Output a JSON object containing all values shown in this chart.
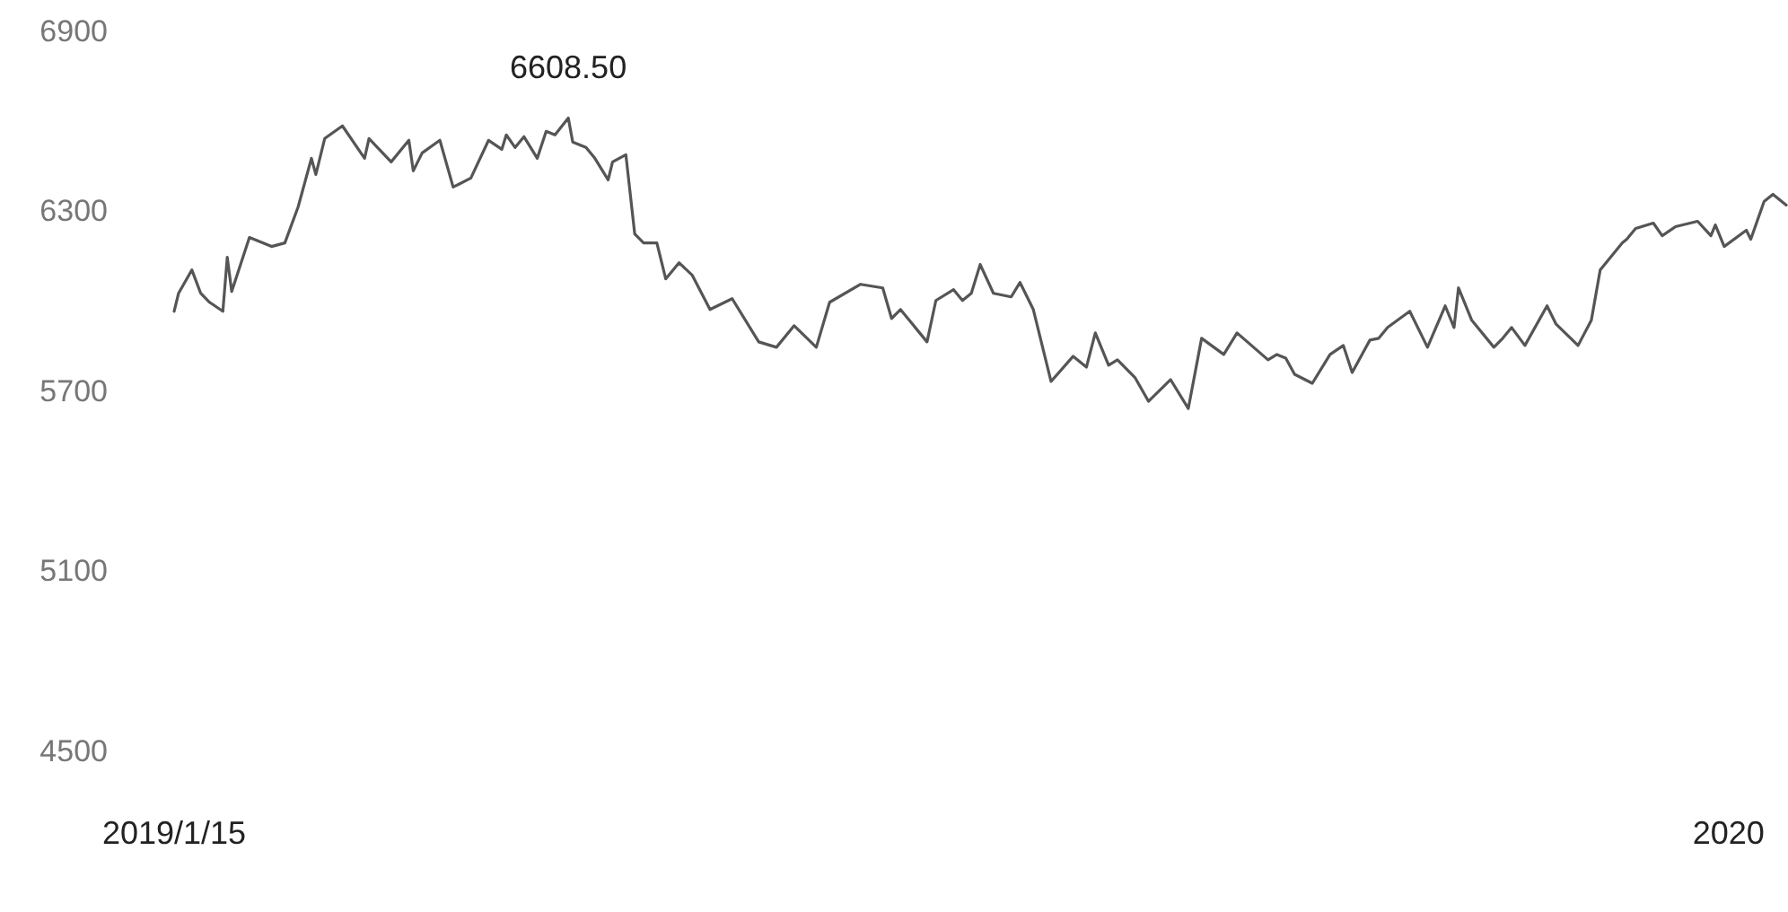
{
  "chart_data": {
    "type": "line",
    "xlim": [
      "2019-01-15",
      "2020-01-14"
    ],
    "xticks": [
      {
        "value": "2019-01-15",
        "label": "2019/1/15"
      },
      {
        "value": "2020-01-01",
        "label": "2020"
      }
    ],
    "ylim": [
      4500,
      6900
    ],
    "yticks": [
      4500,
      5100,
      5700,
      6300,
      6900
    ],
    "grid": false,
    "marker": "none",
    "line_style": "solid",
    "annotations": [
      {
        "text": "6608.50",
        "x": "2019-04-14",
        "y": 6608.5
      }
    ],
    "series": [
      {
        "color": "#555555",
        "x": [
          "2019-01-15",
          "2019-01-16",
          "2019-01-19",
          "2019-01-21",
          "2019-01-23",
          "2019-01-26",
          "2019-01-27",
          "2019-01-28",
          "2019-02-01",
          "2019-02-06",
          "2019-02-09",
          "2019-02-12",
          "2019-02-15",
          "2019-02-16",
          "2019-02-18",
          "2019-02-22",
          "2019-02-27",
          "2019-02-28",
          "2019-03-05",
          "2019-03-09",
          "2019-03-10",
          "2019-03-12",
          "2019-03-16",
          "2019-03-19",
          "2019-03-23",
          "2019-03-27",
          "2019-03-30",
          "2019-03-31",
          "2019-04-02",
          "2019-04-04",
          "2019-04-07",
          "2019-04-09",
          "2019-04-11",
          "2019-04-14",
          "2019-04-15",
          "2019-04-18",
          "2019-04-20",
          "2019-04-23",
          "2019-04-24",
          "2019-04-27",
          "2019-04-29",
          "2019-05-01",
          "2019-05-04",
          "2019-05-06",
          "2019-05-09",
          "2019-05-12",
          "2019-05-16",
          "2019-05-21",
          "2019-05-27",
          "2019-05-31",
          "2019-06-04",
          "2019-06-09",
          "2019-06-12",
          "2019-06-19",
          "2019-06-24",
          "2019-06-26",
          "2019-06-28",
          "2019-07-04",
          "2019-07-06",
          "2019-07-10",
          "2019-07-12",
          "2019-07-14",
          "2019-07-16",
          "2019-07-19",
          "2019-07-23",
          "2019-07-25",
          "2019-07-28",
          "2019-08-01",
          "2019-08-06",
          "2019-08-09",
          "2019-08-11",
          "2019-08-14",
          "2019-08-16",
          "2019-08-20",
          "2019-08-23",
          "2019-08-28",
          "2019-09-01",
          "2019-09-04",
          "2019-09-09",
          "2019-09-12",
          "2019-09-19",
          "2019-09-21",
          "2019-09-23",
          "2019-09-25",
          "2019-09-29",
          "2019-10-03",
          "2019-10-06",
          "2019-10-08",
          "2019-10-12",
          "2019-10-14",
          "2019-10-16",
          "2019-10-21",
          "2019-10-25",
          "2019-10-29",
          "2019-10-31",
          "2019-11-01",
          "2019-11-04",
          "2019-11-09",
          "2019-11-11",
          "2019-11-13",
          "2019-11-16",
          "2019-11-21",
          "2019-11-23",
          "2019-11-28",
          "2019-12-01",
          "2019-12-03",
          "2019-12-08",
          "2019-12-09",
          "2019-12-11",
          "2019-12-15",
          "2019-12-17",
          "2019-12-20",
          "2019-12-25",
          "2019-12-28",
          "2019-12-29",
          "2019-12-31",
          "2020-01-05",
          "2020-01-06",
          "2020-01-09",
          "2020-01-11",
          "2020-01-14"
        ],
        "values": [
          5964,
          6024,
          6102,
          6024,
          5994,
          5964,
          6144,
          6030,
          6210,
          6180,
          6192,
          6312,
          6474,
          6420,
          6540,
          6582,
          6474,
          6540,
          6462,
          6534,
          6432,
          6492,
          6534,
          6378,
          6408,
          6534,
          6504,
          6552,
          6510,
          6546,
          6474,
          6564,
          6552,
          6608.5,
          6528,
          6510,
          6474,
          6402,
          6462,
          6486,
          6222,
          6192,
          6192,
          6072,
          6126,
          6084,
          5970,
          6006,
          5862,
          5844,
          5916,
          5844,
          5994,
          6054,
          6042,
          5940,
          5970,
          5862,
          6000,
          6036,
          6000,
          6024,
          6120,
          6024,
          6012,
          6060,
          5970,
          5730,
          5814,
          5778,
          5892,
          5784,
          5802,
          5742,
          5664,
          5736,
          5640,
          5874,
          5820,
          5892,
          5802,
          5820,
          5808,
          5754,
          5724,
          5820,
          5850,
          5760,
          5868,
          5874,
          5910,
          5964,
          5844,
          5982,
          5910,
          6042,
          5934,
          5844,
          5874,
          5910,
          5850,
          5982,
          5922,
          5850,
          5934,
          6102,
          6192,
          6204,
          6240,
          6258,
          6216,
          6246,
          6264,
          6216,
          6252,
          6180,
          6234,
          6204,
          6330,
          6354,
          6318
        ]
      }
    ]
  }
}
